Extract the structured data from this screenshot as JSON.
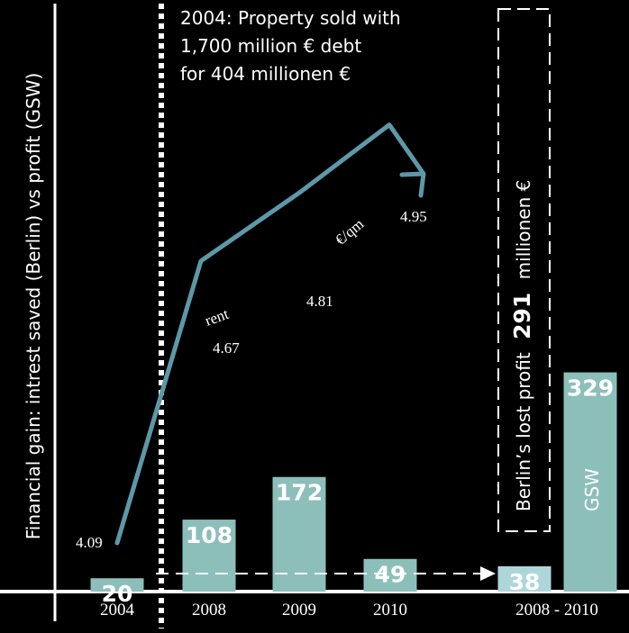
{
  "chart_data": {
    "type": "bar",
    "ylabel": "Financial gain:  intrest saved (Berlin) vs profit (GSW)",
    "categories": [
      "2004",
      "2008",
      "2009",
      "2010",
      "2008 - 2010"
    ],
    "series": [
      {
        "values": [
          20,
          108,
          172,
          49,
          38
        ]
      }
    ],
    "gsw_bar": {
      "value": 329,
      "label": "GSW"
    },
    "rent_line": {
      "label": "rent",
      "unit": "€/qm",
      "points": [
        {
          "x": "2004",
          "y": 4.09
        },
        {
          "x": "2008",
          "y": 4.67
        },
        {
          "x": "2009",
          "y": 4.81
        },
        {
          "x": "2010",
          "y": 4.95
        }
      ]
    },
    "annotation": {
      "lines": [
        "2004:  Property sold with",
        "1,700 million € debt",
        "for 404 millionen €"
      ]
    },
    "lost_profit": {
      "prefix": "Berlin’s lost profit",
      "value": "291",
      "suffix": "millionen €"
    },
    "colors": {
      "background": "#000000",
      "bar": "#8dbfba",
      "bar_berlin": "#aed6da",
      "rent_line": "#5d98a8",
      "axis": "#ffffff"
    }
  }
}
